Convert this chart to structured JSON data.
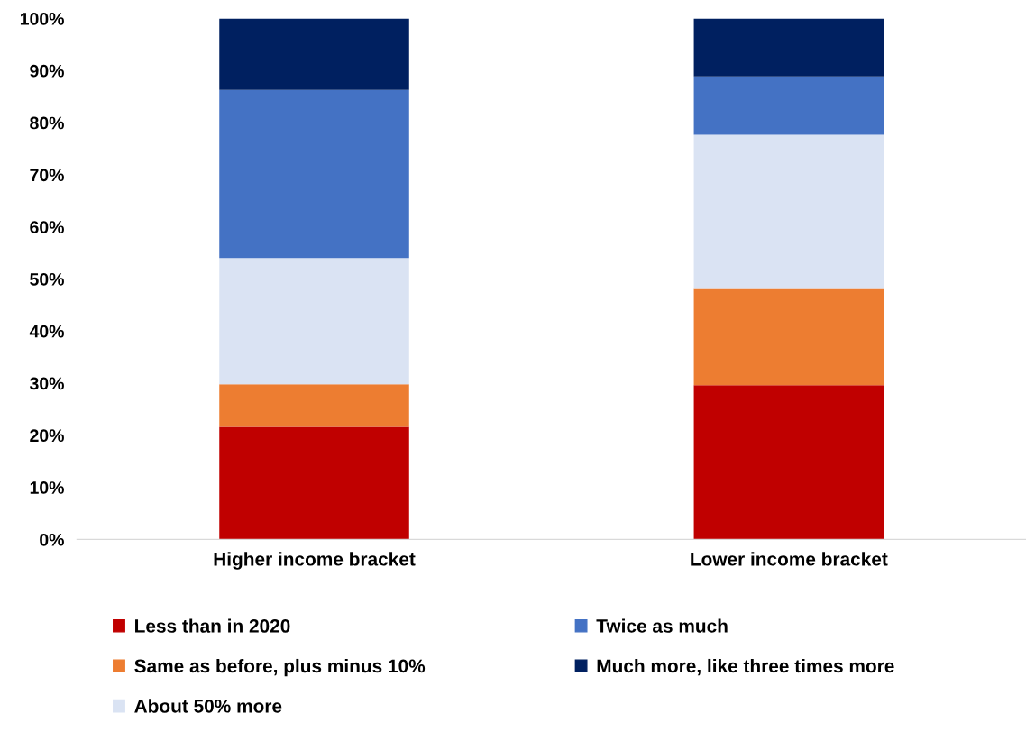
{
  "chart_data": {
    "type": "bar",
    "stacked": true,
    "categories": [
      "Higher income bracket",
      "Lower income bracket"
    ],
    "series": [
      {
        "name": "Less than in 2020",
        "color": "#c00000",
        "values": [
          21.6,
          29.6
        ]
      },
      {
        "name": "Same as before, plus minus 10%",
        "color": "#ed7d31",
        "values": [
          8.2,
          18.5
        ]
      },
      {
        "name": "About 50% more",
        "color": "#dae3f3",
        "values": [
          24.2,
          29.6
        ]
      },
      {
        "name": "Twice as much",
        "color": "#4472c4",
        "values": [
          32.3,
          11.2
        ]
      },
      {
        "name": "Much more, like three times more",
        "color": "#002060",
        "values": [
          13.7,
          11.1
        ]
      }
    ],
    "ylim": [
      0,
      100
    ],
    "yticks": [
      {
        "value": 0,
        "label": "0%"
      },
      {
        "value": 10,
        "label": "10%"
      },
      {
        "value": 20,
        "label": "20%"
      },
      {
        "value": 30,
        "label": "30%"
      },
      {
        "value": 40,
        "label": "40%"
      },
      {
        "value": 50,
        "label": "50%"
      },
      {
        "value": 60,
        "label": "60%"
      },
      {
        "value": 70,
        "label": "70%"
      },
      {
        "value": 80,
        "label": "80%"
      },
      {
        "value": 90,
        "label": "90%"
      },
      {
        "value": 100,
        "label": "100%"
      }
    ],
    "grid": false,
    "legend": "bottom"
  }
}
